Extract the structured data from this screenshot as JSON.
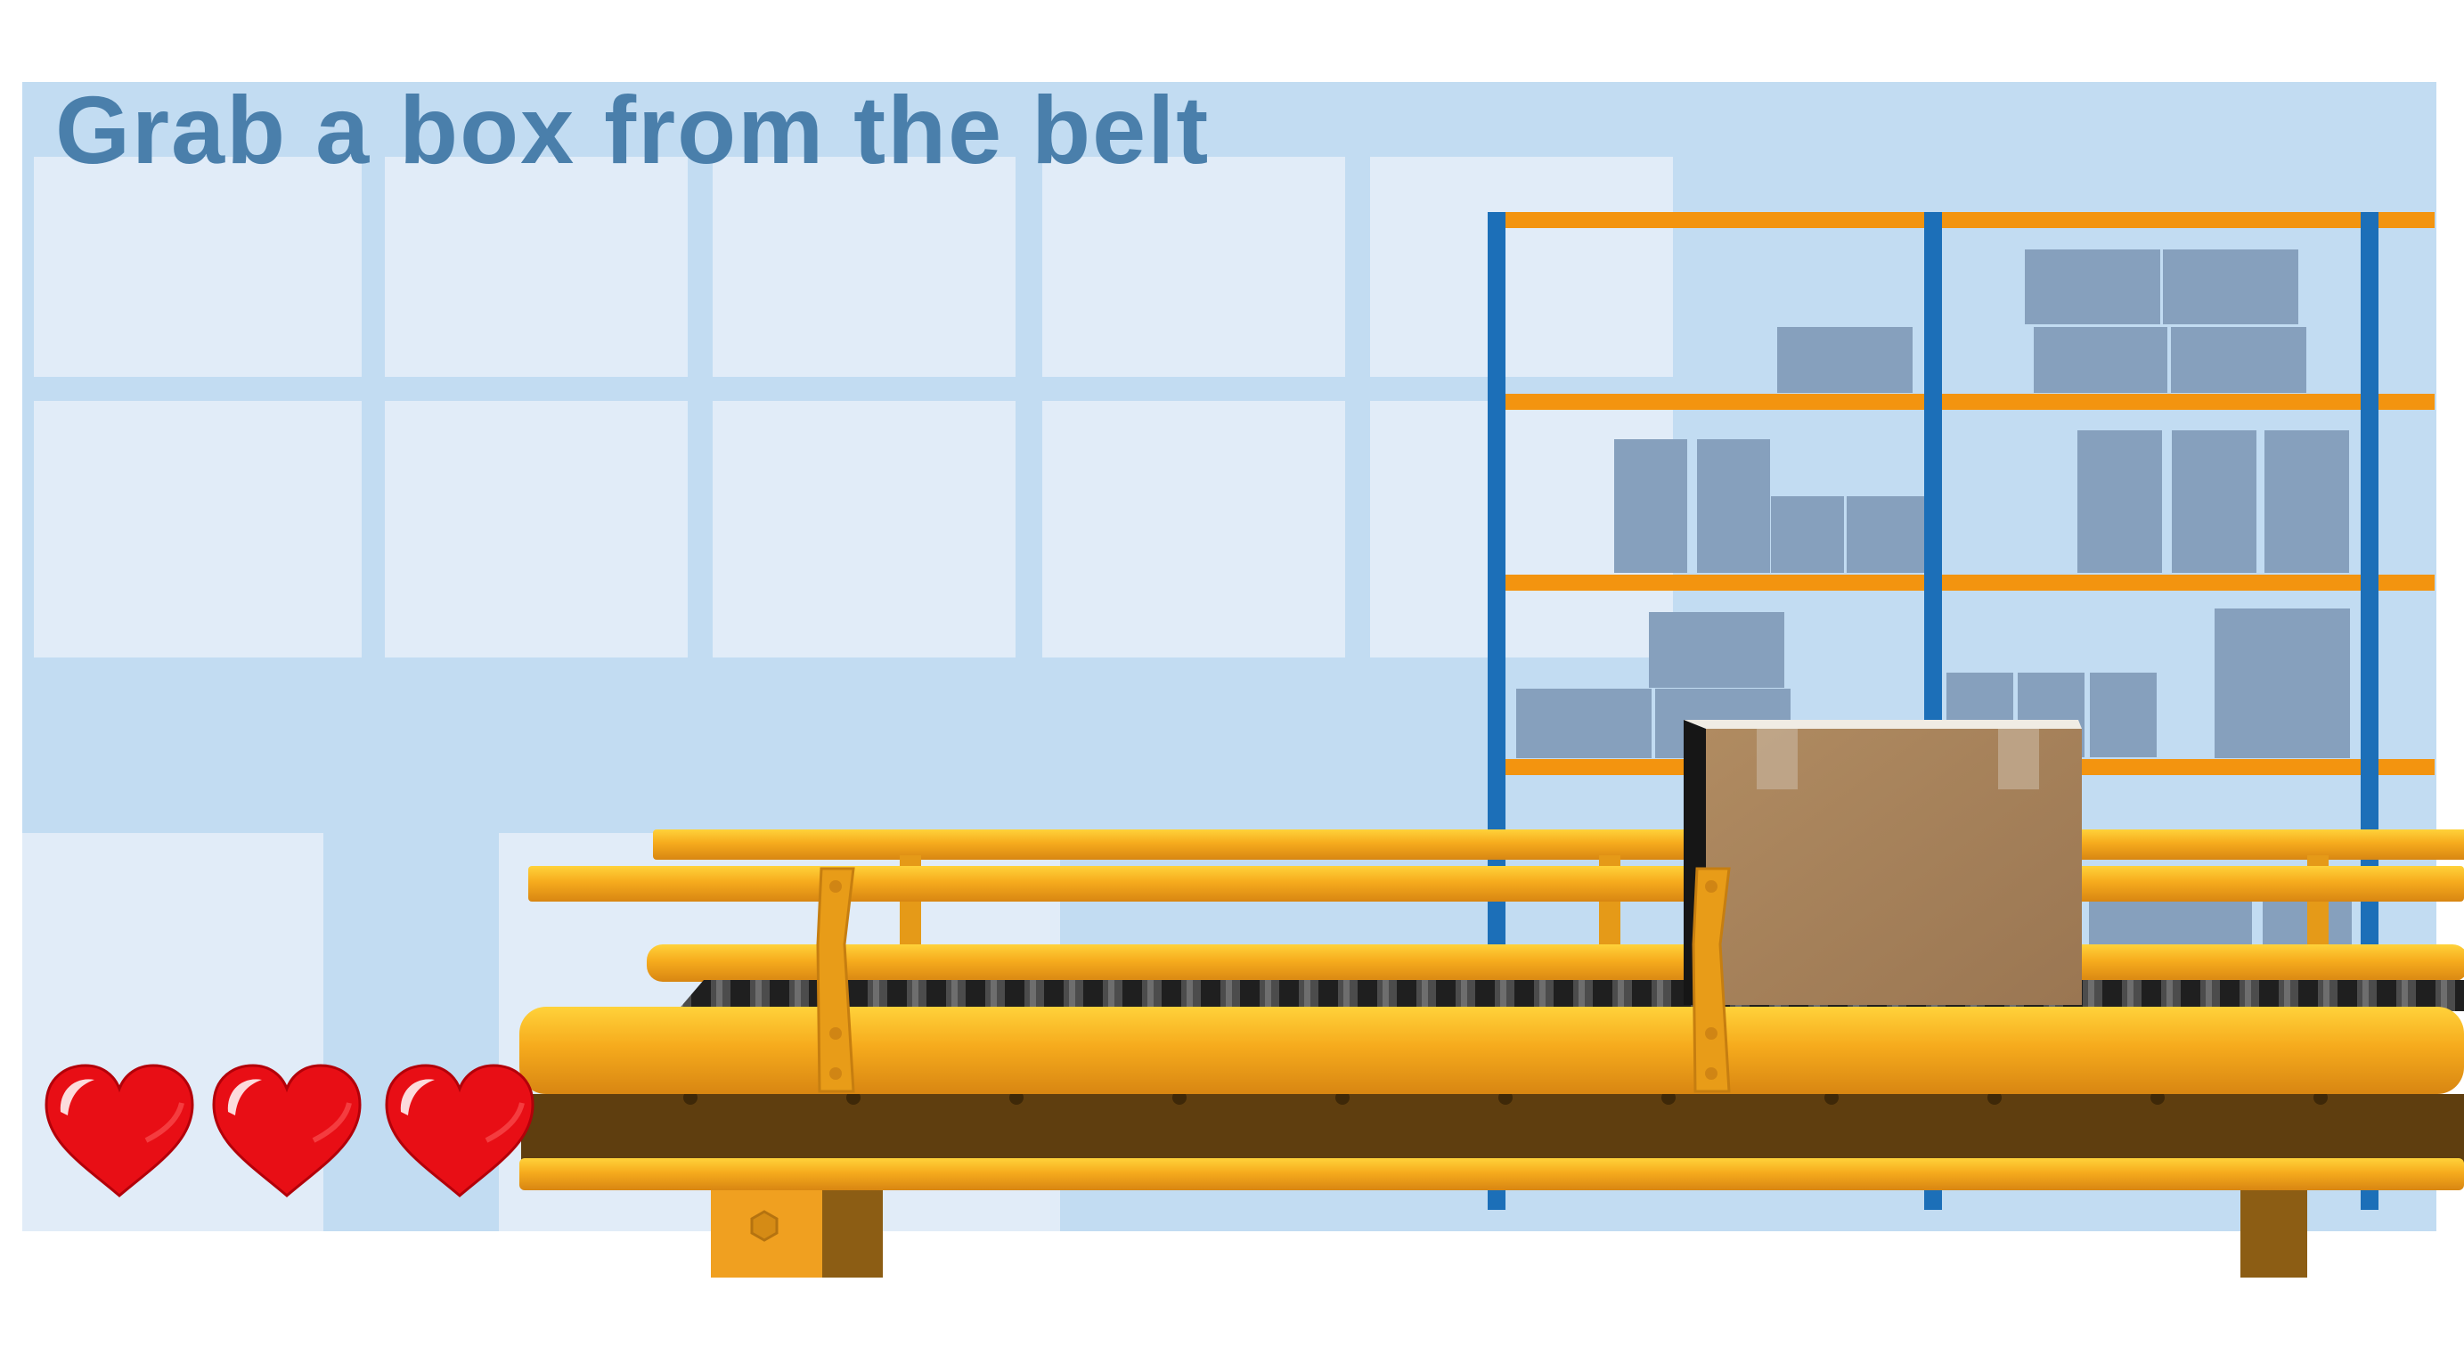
{
  "game": {
    "instruction": "Grab a box from the belt",
    "lives": 3
  },
  "icons": {
    "life": "heart-icon",
    "box": "cardboard-box"
  },
  "colors": {
    "wall": "#c2dcf2",
    "window_pane": "#e1ecf8",
    "instruction_text": "#4a7fab",
    "shelf_upright": "#1c6fb8",
    "shelf_beam": "#f3940f",
    "shelf_box": "#86a0bd",
    "conveyor_frame": "#f0a020",
    "conveyor_belt": "#2a2a2a",
    "box": "#a7825a",
    "heart": "#e80e15"
  }
}
